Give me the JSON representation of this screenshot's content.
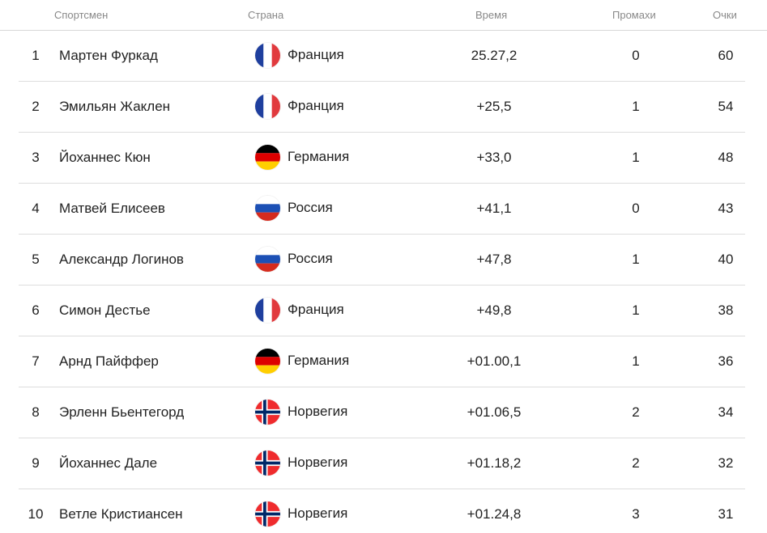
{
  "header": {
    "athlete": "Спортсмен",
    "country": "Страна",
    "time": "Время",
    "misses": "Промахи",
    "points": "Очки"
  },
  "rows": [
    {
      "rank": "1",
      "name": "Мартен Фуркад",
      "country": "Франция",
      "flag": "france-flag-icon",
      "time": "25.27,2",
      "misses": "0",
      "points": "60"
    },
    {
      "rank": "2",
      "name": "Эмильян Жаклен",
      "country": "Франция",
      "flag": "france-flag-icon",
      "time": "+25,5",
      "misses": "1",
      "points": "54"
    },
    {
      "rank": "3",
      "name": "Йоханнес Кюн",
      "country": "Германия",
      "flag": "germany-flag-icon",
      "time": "+33,0",
      "misses": "1",
      "points": "48"
    },
    {
      "rank": "4",
      "name": "Матвей Елисеев",
      "country": "Россия",
      "flag": "russia-flag-icon",
      "time": "+41,1",
      "misses": "0",
      "points": "43"
    },
    {
      "rank": "5",
      "name": "Александр Логинов",
      "country": "Россия",
      "flag": "russia-flag-icon",
      "time": "+47,8",
      "misses": "1",
      "points": "40"
    },
    {
      "rank": "6",
      "name": "Симон Дестье",
      "country": "Франция",
      "flag": "france-flag-icon",
      "time": "+49,8",
      "misses": "1",
      "points": "38"
    },
    {
      "rank": "7",
      "name": "Арнд Пайффер",
      "country": "Германия",
      "flag": "germany-flag-icon",
      "time": "+01.00,1",
      "misses": "1",
      "points": "36"
    },
    {
      "rank": "8",
      "name": "Эрленн Бьентегорд",
      "country": "Норвегия",
      "flag": "norway-flag-icon",
      "time": "+01.06,5",
      "misses": "2",
      "points": "34"
    },
    {
      "rank": "9",
      "name": "Йоханнес Дале",
      "country": "Норвегия",
      "flag": "norway-flag-icon",
      "time": "+01.18,2",
      "misses": "2",
      "points": "32"
    },
    {
      "rank": "10",
      "name": "Ветле Кристиансен",
      "country": "Норвегия",
      "flag": "norway-flag-icon",
      "time": "+01.24,8",
      "misses": "3",
      "points": "31"
    }
  ],
  "colors": {
    "header_text": "#888888",
    "body_text": "#222222",
    "divider": "#dddddd",
    "france_blue": "#1f3f9e",
    "france_red": "#e13a3e",
    "germany_black": "#000000",
    "germany_red": "#dd0000",
    "germany_gold": "#ffce00",
    "russia_blue": "#1c50b5",
    "russia_red": "#d52b1e",
    "norway_red": "#ef2b2d",
    "norway_blue": "#002868"
  }
}
